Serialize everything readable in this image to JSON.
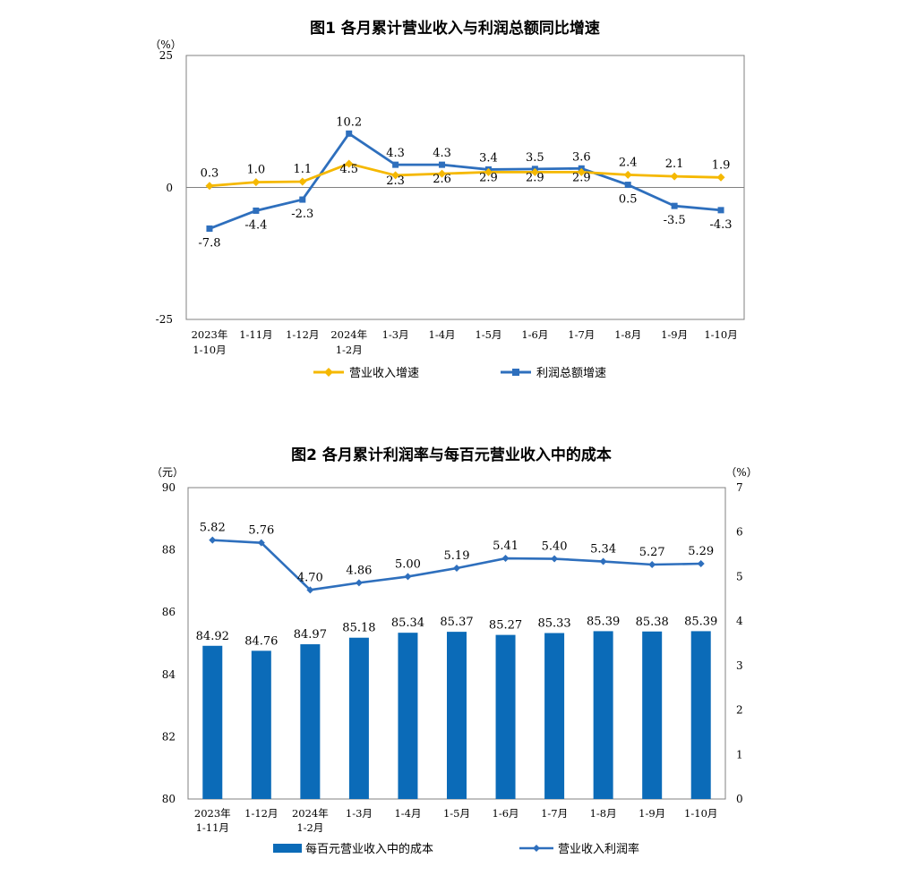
{
  "colors": {
    "revenue": "#f5b800",
    "profit": "#2e6fbd",
    "bar": "#0b6bb8",
    "frame": "#808080"
  },
  "chart_data": [
    {
      "type": "line",
      "title": "图1  各月累计营业收入与利润总额同比增速",
      "unit": "（%）",
      "ylim": [
        -25,
        25
      ],
      "yticks": [
        "25",
        "0",
        "-25"
      ],
      "categories": [
        {
          "line1": "2023年",
          "line2": "1-10月"
        },
        {
          "line1": "1-11月",
          "line2": ""
        },
        {
          "line1": "1-12月",
          "line2": ""
        },
        {
          "line1": "2024年",
          "line2": "1-2月"
        },
        {
          "line1": "1-3月",
          "line2": ""
        },
        {
          "line1": "1-4月",
          "line2": ""
        },
        {
          "line1": "1-5月",
          "line2": ""
        },
        {
          "line1": "1-6月",
          "line2": ""
        },
        {
          "line1": "1-7月",
          "line2": ""
        },
        {
          "line1": "1-8月",
          "line2": ""
        },
        {
          "line1": "1-9月",
          "line2": ""
        },
        {
          "line1": "1-10月",
          "line2": ""
        }
      ],
      "series": [
        {
          "name": "营业收入增速",
          "values": [
            0.3,
            1.0,
            1.1,
            4.5,
            2.3,
            2.6,
            2.9,
            2.9,
            2.9,
            2.4,
            2.1,
            1.9
          ],
          "labels": [
            "0.3",
            "1.0",
            "1.1",
            "4.5",
            "2.3",
            "2.6",
            "2.9",
            "2.9",
            "2.9",
            "2.4",
            "2.1",
            "1.9"
          ]
        },
        {
          "name": "利润总额增速",
          "values": [
            -7.8,
            -4.4,
            -2.3,
            10.2,
            4.3,
            4.3,
            3.4,
            3.5,
            3.6,
            0.5,
            -3.5,
            -4.3
          ],
          "labels": [
            "-7.8",
            "-4.4",
            "-2.3",
            "10.2",
            "4.3",
            "4.3",
            "3.4",
            "3.5",
            "3.6",
            "0.5",
            "-3.5",
            "-4.3"
          ]
        }
      ],
      "grid": false,
      "legend_position": "bottom"
    },
    {
      "type": "bar",
      "title": "图2  各月累计利润率与每百元营业收入中的成本",
      "unit_left": "（元）",
      "unit_right": "（%）",
      "ylim_left": [
        80,
        90
      ],
      "ylim_right": [
        0,
        7
      ],
      "yticks_left": [
        "90",
        "88",
        "86",
        "84",
        "82",
        "80"
      ],
      "yticks_right": [
        "7",
        "6",
        "5",
        "4",
        "3",
        "2",
        "1",
        "0"
      ],
      "categories": [
        {
          "line1": "2023年",
          "line2": "1-11月"
        },
        {
          "line1": "1-12月",
          "line2": ""
        },
        {
          "line1": "2024年",
          "line2": "1-2月"
        },
        {
          "line1": "1-3月",
          "line2": ""
        },
        {
          "line1": "1-4月",
          "line2": ""
        },
        {
          "line1": "1-5月",
          "line2": ""
        },
        {
          "line1": "1-6月",
          "line2": ""
        },
        {
          "line1": "1-7月",
          "line2": ""
        },
        {
          "line1": "1-8月",
          "line2": ""
        },
        {
          "line1": "1-9月",
          "line2": ""
        },
        {
          "line1": "1-10月",
          "line2": ""
        }
      ],
      "series": [
        {
          "name": "每百元营业收入中的成本",
          "kind": "bar",
          "axis": "left",
          "values": [
            84.92,
            84.76,
            84.97,
            85.18,
            85.34,
            85.37,
            85.27,
            85.33,
            85.39,
            85.38,
            85.39
          ],
          "labels": [
            "84.92",
            "84.76",
            "84.97",
            "85.18",
            "85.34",
            "85.37",
            "85.27",
            "85.33",
            "85.39",
            "85.38",
            "85.39"
          ]
        },
        {
          "name": "营业收入利润率",
          "kind": "line",
          "axis": "right",
          "values": [
            5.82,
            5.76,
            4.7,
            4.86,
            5.0,
            5.19,
            5.41,
            5.4,
            5.34,
            5.27,
            5.29
          ],
          "labels": [
            "5.82",
            "5.76",
            "4.70",
            "4.86",
            "5.00",
            "5.19",
            "5.41",
            "5.40",
            "5.34",
            "5.27",
            "5.29"
          ]
        }
      ],
      "grid": false,
      "legend_position": "bottom"
    }
  ]
}
